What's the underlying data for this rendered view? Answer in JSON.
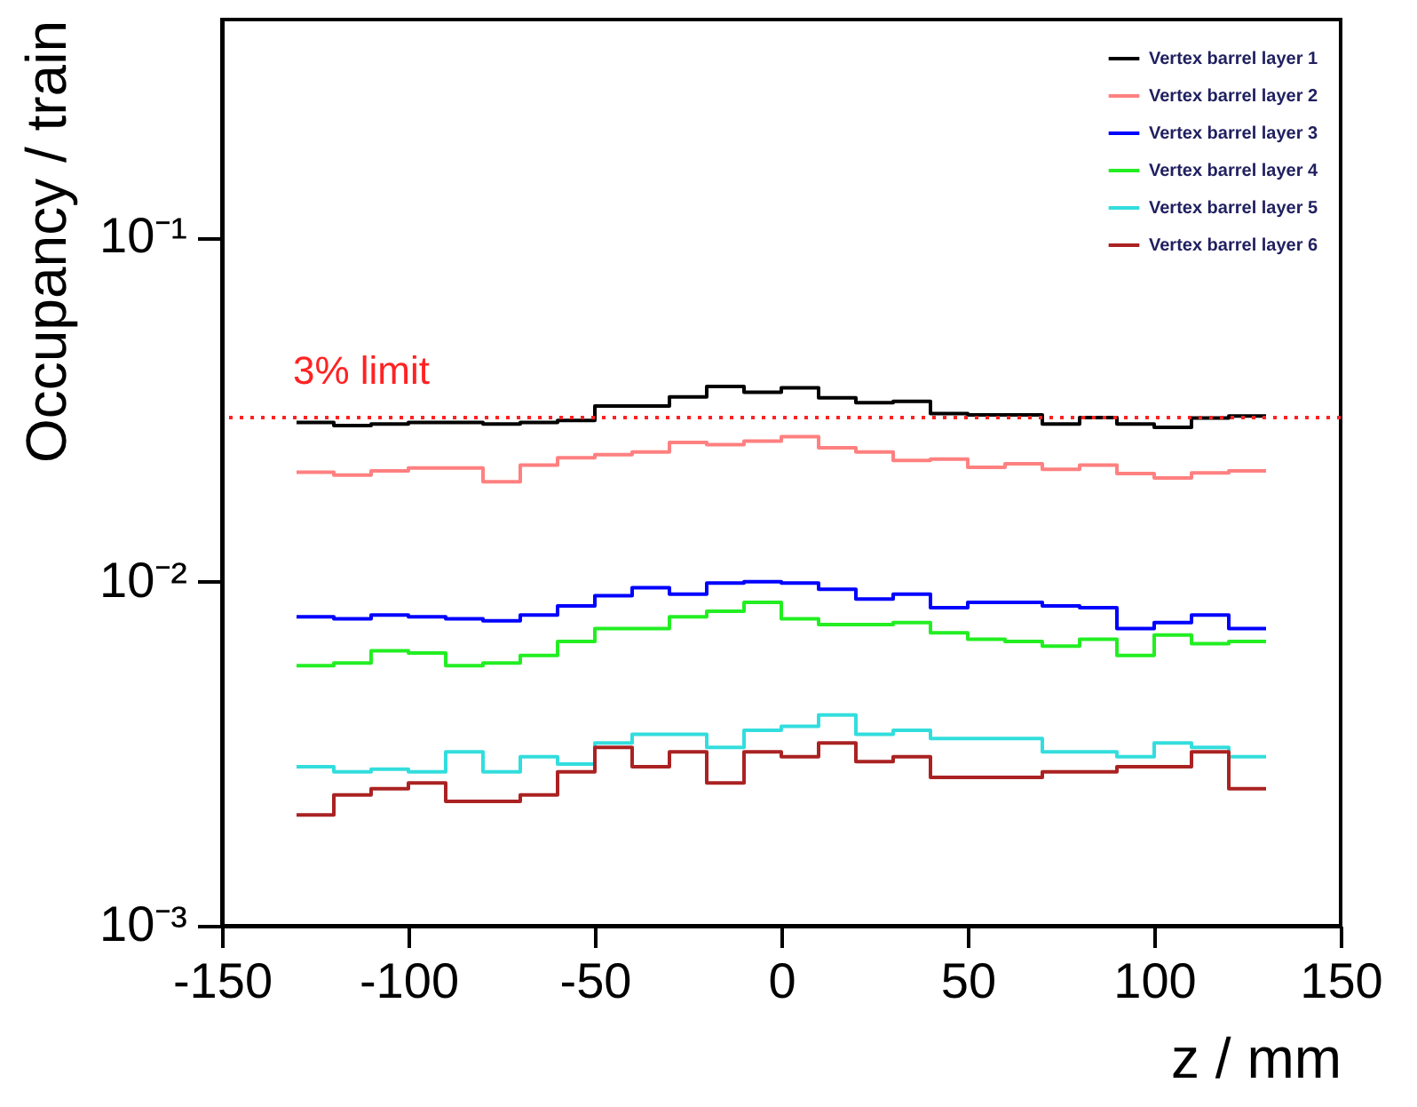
{
  "chart_data": {
    "type": "histogram",
    "xlabel": "z / mm",
    "ylabel": "Occupancy / train",
    "bins": [
      -130,
      -120,
      -110,
      -100,
      -90,
      -80,
      -70,
      -60,
      -50,
      -40,
      -30,
      -20,
      -10,
      0,
      10,
      20,
      30,
      40,
      50,
      60,
      70,
      80,
      90,
      100,
      110,
      120,
      130
    ],
    "series": [
      {
        "name": "Vertex barrel layer 1",
        "color": "#000000",
        "values": [
          0.029,
          0.0284,
          0.0287,
          0.029,
          0.029,
          0.0287,
          0.029,
          0.0294,
          0.0324,
          0.0324,
          0.0344,
          0.0369,
          0.0355,
          0.0366,
          0.0342,
          0.0331,
          0.0334,
          0.0308,
          0.0305,
          0.0305,
          0.0287,
          0.03,
          0.0287,
          0.0281,
          0.0299,
          0.0303
        ]
      },
      {
        "name": "Vertex barrel layer 2",
        "color": "#ff8080",
        "values": [
          0.0208,
          0.0204,
          0.021,
          0.0214,
          0.0214,
          0.0195,
          0.0218,
          0.0229,
          0.0234,
          0.0238,
          0.0254,
          0.025,
          0.0256,
          0.0264,
          0.0245,
          0.0238,
          0.0225,
          0.0227,
          0.0215,
          0.022,
          0.0212,
          0.0218,
          0.0206,
          0.02,
          0.0207,
          0.021
        ]
      },
      {
        "name": "Vertex barrel layer 3",
        "color": "#0000ff",
        "values": [
          0.0079,
          0.0078,
          0.008,
          0.0079,
          0.0078,
          0.0077,
          0.008,
          0.0085,
          0.0091,
          0.0096,
          0.0092,
          0.0099,
          0.01,
          0.0099,
          0.0095,
          0.0089,
          0.0092,
          0.0084,
          0.0087,
          0.0087,
          0.0085,
          0.0084,
          0.0073,
          0.0076,
          0.008,
          0.0073
        ]
      },
      {
        "name": "Vertex barrel layer 4",
        "color": "#22ee22",
        "values": [
          0.0057,
          0.0058,
          0.0063,
          0.0062,
          0.0057,
          0.0058,
          0.0061,
          0.0067,
          0.0073,
          0.0073,
          0.0079,
          0.0082,
          0.0087,
          0.0078,
          0.0075,
          0.0075,
          0.0076,
          0.0071,
          0.0068,
          0.0067,
          0.0065,
          0.0068,
          0.0061,
          0.007,
          0.0066,
          0.0067
        ]
      },
      {
        "name": "Vertex barrel layer 5",
        "color": "#33dddd",
        "values": [
          0.0029,
          0.0028,
          0.00285,
          0.0028,
          0.0032,
          0.0028,
          0.0031,
          0.00295,
          0.0034,
          0.0036,
          0.0036,
          0.0033,
          0.0037,
          0.0038,
          0.0041,
          0.0036,
          0.0037,
          0.0035,
          0.0035,
          0.0035,
          0.0032,
          0.0032,
          0.0031,
          0.0034,
          0.0033,
          0.0031
        ]
      },
      {
        "name": "Vertex barrel layer 6",
        "color": "#aa2222",
        "values": [
          0.0021,
          0.0024,
          0.0025,
          0.0026,
          0.0023,
          0.0023,
          0.0024,
          0.0028,
          0.0033,
          0.0029,
          0.0032,
          0.0026,
          0.0032,
          0.0031,
          0.0034,
          0.003,
          0.0031,
          0.0027,
          0.0027,
          0.0027,
          0.0028,
          0.0028,
          0.0029,
          0.0029,
          0.0032,
          0.0025
        ]
      }
    ],
    "xlim": [
      -150,
      150
    ],
    "xticks": [
      -150,
      -100,
      -50,
      0,
      50,
      100,
      150
    ],
    "ylim": [
      0.001,
      0.43
    ],
    "yticks": [
      {
        "value": 0.001,
        "label": "10⁻³"
      },
      {
        "value": 0.01,
        "label": "10⁻²"
      },
      {
        "value": 0.1,
        "label": "10⁻¹"
      }
    ],
    "log": "y",
    "legend": "top right",
    "ref_lines": [
      {
        "axis": "y",
        "value": 0.03,
        "label": "3% limit",
        "color": "#ff2222",
        "line_style": "dotted"
      }
    ]
  }
}
